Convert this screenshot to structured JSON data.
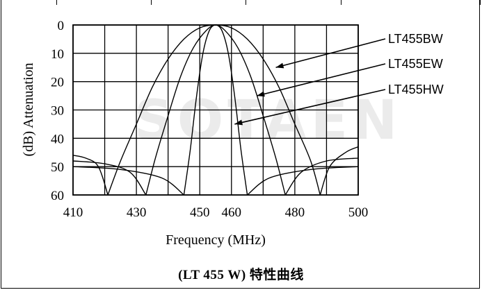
{
  "caption": "(LT 455 W)  特性曲线",
  "chart_data": {
    "type": "line",
    "title": "",
    "xlabel": "Frequency (MHz)",
    "ylabel": "(dB) Attenuation",
    "xlim": [
      410,
      500
    ],
    "ylim": [
      0,
      60
    ],
    "y_inverted": true,
    "grid": true,
    "x_ticks": [
      410,
      430,
      450,
      460,
      480,
      500
    ],
    "x_tick_labels": [
      "410",
      "430",
      "450",
      "460",
      "480",
      "500"
    ],
    "y_ticks": [
      0,
      10,
      20,
      30,
      40,
      50,
      60
    ],
    "y_tick_labels": [
      "0",
      "10",
      "20",
      "30",
      "40",
      "50",
      "60"
    ],
    "series": [
      {
        "name": "LT455BW",
        "color": "#000000",
        "passband": [
          [
            421,
            60
          ],
          [
            425,
            48
          ],
          [
            430,
            35
          ],
          [
            435,
            22
          ],
          [
            440,
            12
          ],
          [
            445,
            5
          ],
          [
            450,
            1
          ],
          [
            455,
            0
          ],
          [
            460,
            1
          ],
          [
            465,
            5
          ],
          [
            470,
            12
          ],
          [
            475,
            22
          ],
          [
            480,
            35
          ],
          [
            485,
            48
          ],
          [
            488,
            60
          ]
        ],
        "sidelobe_left": [
          [
            410,
            46
          ],
          [
            414,
            47
          ],
          [
            418,
            50
          ],
          [
            421,
            60
          ]
        ],
        "sidelobe_right": [
          [
            488,
            60
          ],
          [
            491,
            50
          ],
          [
            496,
            45
          ],
          [
            500,
            43
          ]
        ]
      },
      {
        "name": "LT455EW",
        "color": "#000000",
        "passband": [
          [
            433,
            60
          ],
          [
            436,
            47
          ],
          [
            440,
            32
          ],
          [
            444,
            18
          ],
          [
            448,
            8
          ],
          [
            452,
            2
          ],
          [
            455,
            0
          ],
          [
            458,
            2
          ],
          [
            462,
            8
          ],
          [
            466,
            18
          ],
          [
            470,
            32
          ],
          [
            474,
            47
          ],
          [
            477,
            60
          ]
        ],
        "sidelobe_left": [
          [
            410,
            48
          ],
          [
            420,
            49
          ],
          [
            428,
            52
          ],
          [
            433,
            60
          ]
        ],
        "sidelobe_right": [
          [
            477,
            60
          ],
          [
            482,
            52
          ],
          [
            490,
            48
          ],
          [
            500,
            47
          ]
        ]
      },
      {
        "name": "LT455HW",
        "color": "#000000",
        "passband": [
          [
            445,
            60
          ],
          [
            447,
            44
          ],
          [
            449,
            25
          ],
          [
            451,
            10
          ],
          [
            453,
            2
          ],
          [
            455,
            0
          ],
          [
            457,
            2
          ],
          [
            459,
            10
          ],
          [
            461,
            25
          ],
          [
            463,
            44
          ],
          [
            465,
            60
          ]
        ],
        "sidelobe_left": [
          [
            410,
            50
          ],
          [
            425,
            51
          ],
          [
            438,
            54
          ],
          [
            445,
            60
          ]
        ],
        "sidelobe_right": [
          [
            465,
            60
          ],
          [
            472,
            54
          ],
          [
            485,
            51
          ],
          [
            500,
            50
          ]
        ]
      }
    ],
    "annotations": [
      {
        "text": "LT455BW",
        "target": [
          474,
          15
        ]
      },
      {
        "text": "LT455EW",
        "target": [
          468,
          25
        ]
      },
      {
        "text": "LT455HW",
        "target": [
          461,
          35
        ]
      }
    ],
    "watermark": "SOTAEN"
  }
}
